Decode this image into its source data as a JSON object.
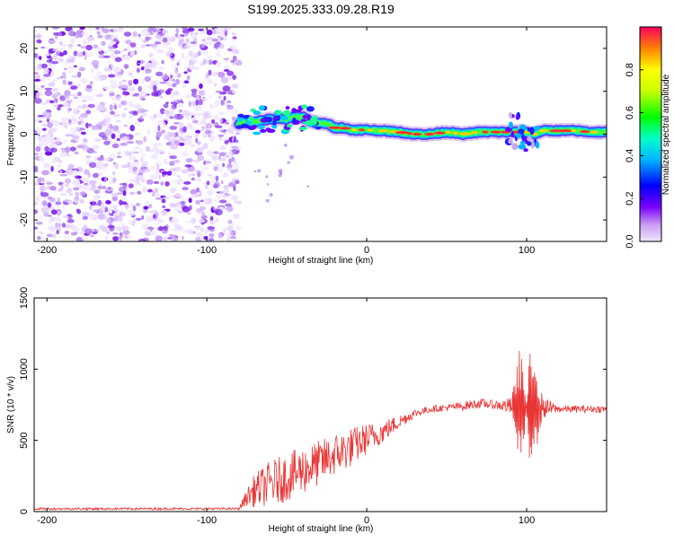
{
  "title": "S199.2025.333.09.28.R19",
  "chart_data": [
    {
      "type": "heatmap",
      "xlabel": "Height of straight line (km)",
      "ylabel": "Frequency (Hz)",
      "xlim": [
        -208,
        150
      ],
      "ylim": [
        -25,
        25
      ],
      "xticks": [
        -200,
        -100,
        0,
        100
      ],
      "yticks": [
        -20,
        -10,
        0,
        10,
        20
      ],
      "noise_region_x": [
        -208,
        -80
      ],
      "ridge_center": {
        "x": [
          -80,
          -70,
          -60,
          -50,
          -45,
          -40,
          -35,
          -30,
          -25,
          -20,
          -15,
          -10,
          -5,
          0,
          10,
          20,
          30,
          40,
          50,
          60,
          70,
          80,
          90,
          95,
          100,
          105,
          110,
          120,
          130,
          140,
          150
        ],
        "y": [
          2.5,
          3,
          3.5,
          3.5,
          4,
          4,
          3,
          2.5,
          2.5,
          1.5,
          1.5,
          1,
          1,
          1,
          0.8,
          0.5,
          0,
          0,
          0.5,
          0,
          0.5,
          0.5,
          0.5,
          0.5,
          0.5,
          0,
          0.8,
          0.8,
          0.8,
          0.5,
          0.5
        ]
      },
      "colorbar": {
        "label": "Normalized spectral amplitude",
        "range": [
          0,
          1
        ],
        "ticks": [
          "0.0",
          "0.2",
          "0.4",
          "0.6",
          "0.8"
        ],
        "tick_values": [
          0,
          0.2,
          0.4,
          0.6,
          0.8
        ]
      }
    },
    {
      "type": "line",
      "xlabel": "Height of straight line (km)",
      "ylabel": "SNR (10 * v/v)",
      "xlim": [
        -208,
        150
      ],
      "ylim": [
        0,
        1500
      ],
      "xticks": [
        -200,
        -100,
        0,
        100
      ],
      "yticks": [
        0,
        500,
        1000,
        1500
      ],
      "color": "#e83535",
      "envelope": {
        "x": [
          -208,
          -150,
          -100,
          -80,
          -75,
          -70,
          -60,
          -50,
          -40,
          -30,
          -20,
          -10,
          0,
          10,
          20,
          30,
          40,
          50,
          60,
          70,
          80,
          90,
          95,
          100,
          105,
          110,
          120,
          130,
          140,
          150
        ],
        "mean": [
          20,
          20,
          20,
          20,
          100,
          150,
          200,
          240,
          290,
          340,
          400,
          450,
          510,
          560,
          630,
          690,
          720,
          730,
          740,
          760,
          750,
          740,
          730,
          720,
          730,
          730,
          720,
          720,
          720,
          720
        ],
        "amplitude": [
          8,
          8,
          8,
          8,
          60,
          120,
          160,
          170,
          170,
          160,
          150,
          140,
          110,
          80,
          50,
          30,
          25,
          25,
          30,
          35,
          30,
          60,
          300,
          500,
          350,
          80,
          25,
          25,
          25,
          25
        ]
      }
    }
  ]
}
